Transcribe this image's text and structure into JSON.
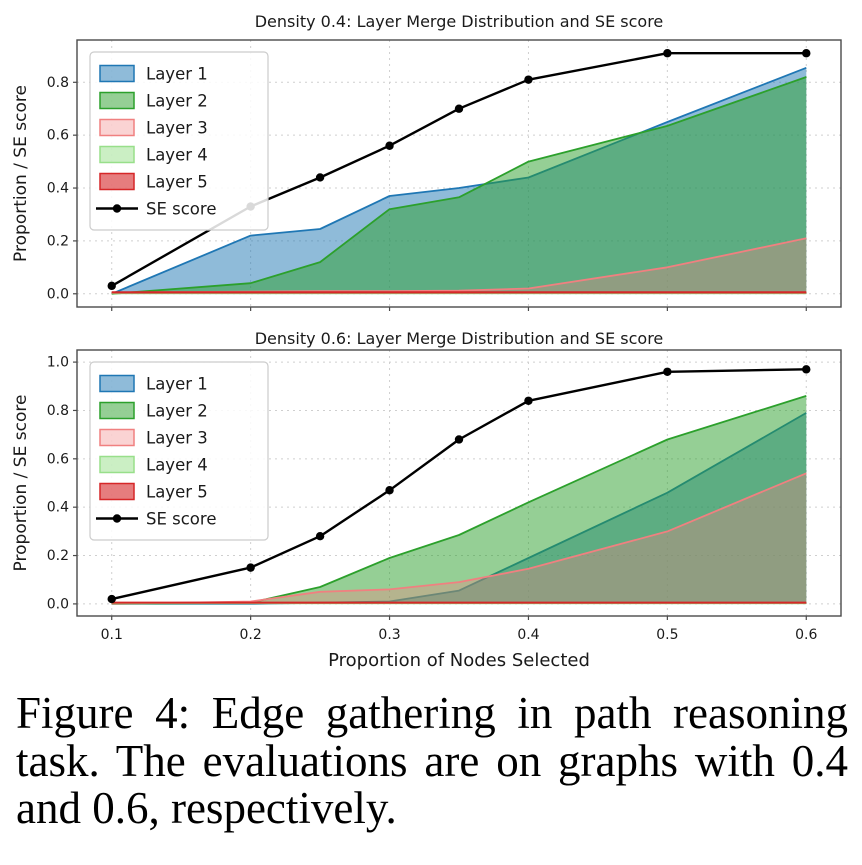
{
  "figure": {
    "caption": "Figure 4: Edge gathering in path reasoning task. The evaluations are on graphs with 0.4 and 0.6, respectively."
  },
  "chart_data": [
    {
      "type": "area",
      "title": "Density 0.4: Layer Merge Distribution and SE score",
      "ylabel": "Proportion / SE score",
      "xlabel": "",
      "x": [
        0.1,
        0.2,
        0.25,
        0.3,
        0.35,
        0.4,
        0.5,
        0.6
      ],
      "xticks": [
        0.1,
        0.2,
        0.3,
        0.4,
        0.5,
        0.6
      ],
      "yticks": [
        0.0,
        0.2,
        0.4,
        0.6,
        0.8
      ],
      "ylim": [
        -0.05,
        0.96
      ],
      "grid": true,
      "legend_position": "upper-left",
      "series": [
        {
          "name": "Layer 1",
          "kind": "area",
          "color": "#1f77b4",
          "fill_opacity": 0.5,
          "values": [
            0.0,
            0.22,
            0.245,
            0.37,
            0.4,
            0.44,
            0.65,
            0.855
          ]
        },
        {
          "name": "Layer 2",
          "kind": "area",
          "color": "#2ca02c",
          "fill_opacity": 0.5,
          "values": [
            0.0,
            0.04,
            0.12,
            0.32,
            0.365,
            0.5,
            0.635,
            0.82
          ]
        },
        {
          "name": "Layer 3",
          "kind": "area",
          "color": "#f08080",
          "fill_opacity": 0.35,
          "values": [
            0.005,
            0.008,
            0.01,
            0.01,
            0.012,
            0.02,
            0.1,
            0.21
          ]
        },
        {
          "name": "Layer 4",
          "kind": "area",
          "color": "#98df8a",
          "fill_opacity": 0.5,
          "values": [
            0.002,
            0.002,
            0.002,
            0.002,
            0.002,
            0.002,
            0.002,
            0.002
          ]
        },
        {
          "name": "Layer 5",
          "kind": "area",
          "color": "#d62728",
          "fill_opacity": 0.6,
          "values": [
            0.006,
            0.006,
            0.006,
            0.006,
            0.006,
            0.006,
            0.006,
            0.006
          ]
        },
        {
          "name": "SE score",
          "kind": "line",
          "color": "#000000",
          "marker": "circle",
          "values": [
            0.03,
            0.33,
            0.44,
            0.56,
            0.7,
            0.81,
            0.91,
            0.91
          ]
        }
      ]
    },
    {
      "type": "area",
      "title": "Density 0.6: Layer Merge Distribution and SE score",
      "ylabel": "Proportion / SE score",
      "xlabel": "Proportion of Nodes Selected",
      "x": [
        0.1,
        0.2,
        0.25,
        0.3,
        0.35,
        0.4,
        0.5,
        0.6
      ],
      "xticks": [
        0.1,
        0.2,
        0.3,
        0.4,
        0.5,
        0.6
      ],
      "yticks": [
        0.0,
        0.2,
        0.4,
        0.6,
        0.8,
        1.0
      ],
      "ylim": [
        -0.05,
        1.05
      ],
      "grid": true,
      "legend_position": "upper-left",
      "series": [
        {
          "name": "Layer 1",
          "kind": "area",
          "color": "#1f77b4",
          "fill_opacity": 0.5,
          "values": [
            0.0,
            0.0,
            0.005,
            0.01,
            0.055,
            0.19,
            0.46,
            0.79
          ]
        },
        {
          "name": "Layer 2",
          "kind": "area",
          "color": "#2ca02c",
          "fill_opacity": 0.5,
          "values": [
            0.0,
            0.005,
            0.07,
            0.19,
            0.285,
            0.42,
            0.68,
            0.86
          ]
        },
        {
          "name": "Layer 3",
          "kind": "area",
          "color": "#f08080",
          "fill_opacity": 0.35,
          "values": [
            0.0,
            0.01,
            0.05,
            0.06,
            0.09,
            0.145,
            0.3,
            0.54
          ]
        },
        {
          "name": "Layer 4",
          "kind": "area",
          "color": "#98df8a",
          "fill_opacity": 0.5,
          "values": [
            0.002,
            0.002,
            0.002,
            0.002,
            0.002,
            0.002,
            0.002,
            0.002
          ]
        },
        {
          "name": "Layer 5",
          "kind": "area",
          "color": "#d62728",
          "fill_opacity": 0.6,
          "values": [
            0.006,
            0.006,
            0.006,
            0.006,
            0.006,
            0.006,
            0.006,
            0.006
          ]
        },
        {
          "name": "SE score",
          "kind": "line",
          "color": "#000000",
          "marker": "circle",
          "values": [
            0.02,
            0.15,
            0.28,
            0.47,
            0.68,
            0.84,
            0.96,
            0.97
          ]
        }
      ]
    }
  ],
  "style": {
    "grid_color": "#cfcfcf",
    "frame_color": "#4a4a4a",
    "text_color": "#1a1a1a",
    "background": "#ffffff"
  }
}
